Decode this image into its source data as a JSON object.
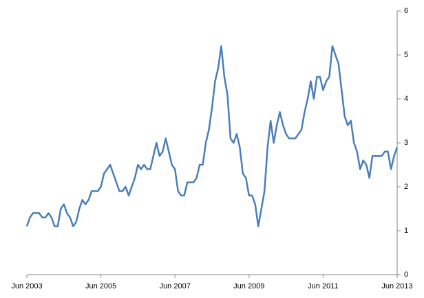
{
  "chart_data": {
    "type": "line",
    "categories": [
      "Jun 2003",
      null,
      null,
      null,
      null,
      null,
      null,
      null,
      null,
      null,
      null,
      null,
      null,
      null,
      null,
      null,
      null,
      null,
      null,
      null,
      null,
      null,
      null,
      null,
      "Jun 2005",
      null,
      null,
      null,
      null,
      null,
      null,
      null,
      null,
      null,
      null,
      null,
      null,
      null,
      null,
      null,
      null,
      null,
      null,
      null,
      null,
      null,
      null,
      null,
      "Jun 2007",
      null,
      null,
      null,
      null,
      null,
      null,
      null,
      null,
      null,
      null,
      null,
      null,
      null,
      null,
      null,
      null,
      null,
      null,
      null,
      null,
      null,
      null,
      null,
      "Jun 2009",
      null,
      null,
      null,
      null,
      null,
      null,
      null,
      null,
      null,
      null,
      null,
      null,
      null,
      null,
      null,
      null,
      null,
      null,
      null,
      null,
      null,
      null,
      null,
      "Jun 2011",
      null,
      null,
      null,
      null,
      null,
      null,
      null,
      null,
      null,
      null,
      null,
      null,
      null,
      null,
      null,
      null,
      null,
      null,
      null,
      null,
      null,
      null,
      null,
      "Jun 2013"
    ],
    "values": [
      1.1,
      1.3,
      1.4,
      1.4,
      1.4,
      1.3,
      1.3,
      1.4,
      1.3,
      1.1,
      1.1,
      1.5,
      1.6,
      1.4,
      1.3,
      1.1,
      1.2,
      1.5,
      1.7,
      1.6,
      1.7,
      1.9,
      1.9,
      1.9,
      2.0,
      2.3,
      2.4,
      2.5,
      2.3,
      2.1,
      1.9,
      1.9,
      2.0,
      1.8,
      2.0,
      2.2,
      2.5,
      2.4,
      2.5,
      2.4,
      2.4,
      2.7,
      3.0,
      2.7,
      2.8,
      3.1,
      2.8,
      2.5,
      2.4,
      1.9,
      1.8,
      1.8,
      2.1,
      2.1,
      2.1,
      2.2,
      2.5,
      2.5,
      3.0,
      3.3,
      3.8,
      4.4,
      4.7,
      5.2,
      4.5,
      4.1,
      3.1,
      3.0,
      3.2,
      2.9,
      2.3,
      2.2,
      1.8,
      1.8,
      1.6,
      1.1,
      1.5,
      1.9,
      2.9,
      3.5,
      3.0,
      3.4,
      3.7,
      3.4,
      3.2,
      3.1,
      3.1,
      3.1,
      3.2,
      3.3,
      3.7,
      4.0,
      4.4,
      4.0,
      4.5,
      4.5,
      4.2,
      4.4,
      4.5,
      5.2,
      5.0,
      4.8,
      4.2,
      3.6,
      3.4,
      3.5,
      3.0,
      2.8,
      2.4,
      2.6,
      2.5,
      2.2,
      2.7,
      2.7,
      2.7,
      2.7,
      2.8,
      2.8,
      2.4,
      2.7,
      2.9
    ],
    "color": "#4a7ebb",
    "ylim": [
      0,
      6
    ],
    "yticks": [
      0,
      1,
      2,
      3,
      4,
      5,
      6
    ],
    "y_axis_side": "right"
  }
}
